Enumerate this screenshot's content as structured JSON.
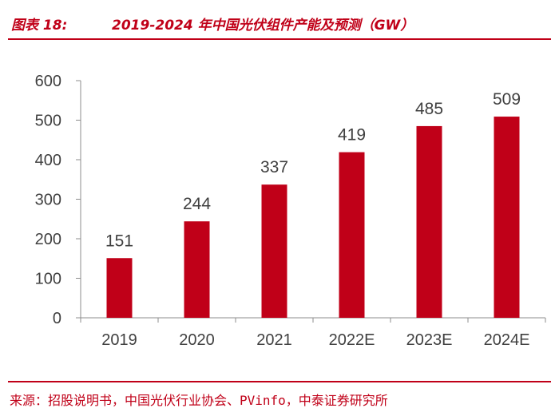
{
  "header": {
    "figure_label": "图表 18:",
    "title": "2019-2024 年中国光伏组件产能及预测（GW）"
  },
  "footer": {
    "source": "来源：招股说明书，中国光伏行业协会、PVinfo，中泰证券研究所"
  },
  "colors": {
    "accent": "#c00018",
    "bar": "#c00018"
  },
  "chart_data": {
    "type": "bar",
    "title": "2019-2024 年中国光伏组件产能及预测（GW）",
    "categories": [
      "2019",
      "2020",
      "2021",
      "2022E",
      "2023E",
      "2024E"
    ],
    "values": [
      151,
      244,
      337,
      419,
      485,
      509
    ],
    "data_labels": [
      "151",
      "244",
      "337",
      "419",
      "485",
      "509"
    ],
    "ylim": [
      0,
      600
    ],
    "yticks": [
      0,
      100,
      200,
      300,
      400,
      500,
      600
    ],
    "ytick_labels": [
      "0",
      "100",
      "200",
      "300",
      "400",
      "500",
      "600"
    ],
    "xlabel": "",
    "ylabel": "",
    "grid": false,
    "legend": "none"
  }
}
